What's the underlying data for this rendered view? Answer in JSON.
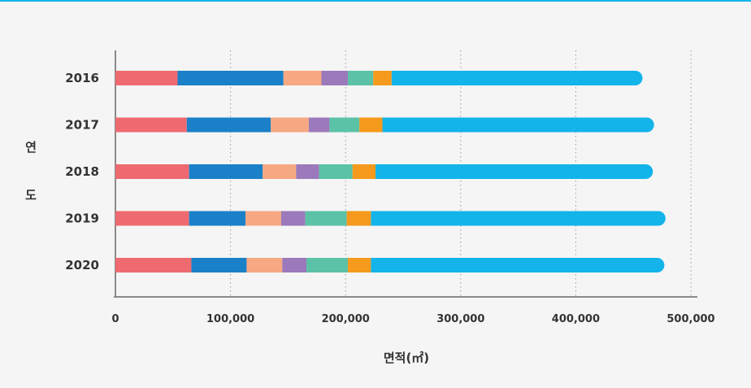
{
  "chart_data": {
    "type": "bar",
    "orientation": "horizontal",
    "stacked": true,
    "categories": [
      "2016",
      "2017",
      "2018",
      "2019",
      "2020"
    ],
    "series": [
      {
        "color": "#ef6a70",
        "values": [
          54000,
          62000,
          64000,
          64000,
          66000
        ]
      },
      {
        "color": "#1a80c8",
        "values": [
          92000,
          73000,
          64000,
          49000,
          48000
        ]
      },
      {
        "color": "#f6a882",
        "values": [
          33000,
          33000,
          29000,
          31000,
          31000
        ]
      },
      {
        "color": "#9b79bb",
        "values": [
          23000,
          18000,
          20000,
          21000,
          21000
        ]
      },
      {
        "color": "#5bc2a7",
        "values": [
          22000,
          26000,
          29000,
          36000,
          36000
        ]
      },
      {
        "color": "#f59a1d",
        "values": [
          16000,
          20000,
          20000,
          21000,
          20000
        ]
      },
      {
        "color": "#12b4ea",
        "values": [
          218000,
          236000,
          241000,
          256000,
          255000
        ]
      }
    ],
    "xlabel": "면적(㎡)",
    "ylabel": "연도",
    "ylabel_chars": [
      "연",
      "도"
    ],
    "xlim": [
      0,
      500000
    ],
    "xticks": [
      0,
      100000,
      200000,
      300000,
      400000,
      500000
    ],
    "xtick_labels": [
      "0",
      "100,000",
      "200,000",
      "300,000",
      "400,000",
      "500,000"
    ],
    "grid": "vertical dotted",
    "legend": "none"
  }
}
